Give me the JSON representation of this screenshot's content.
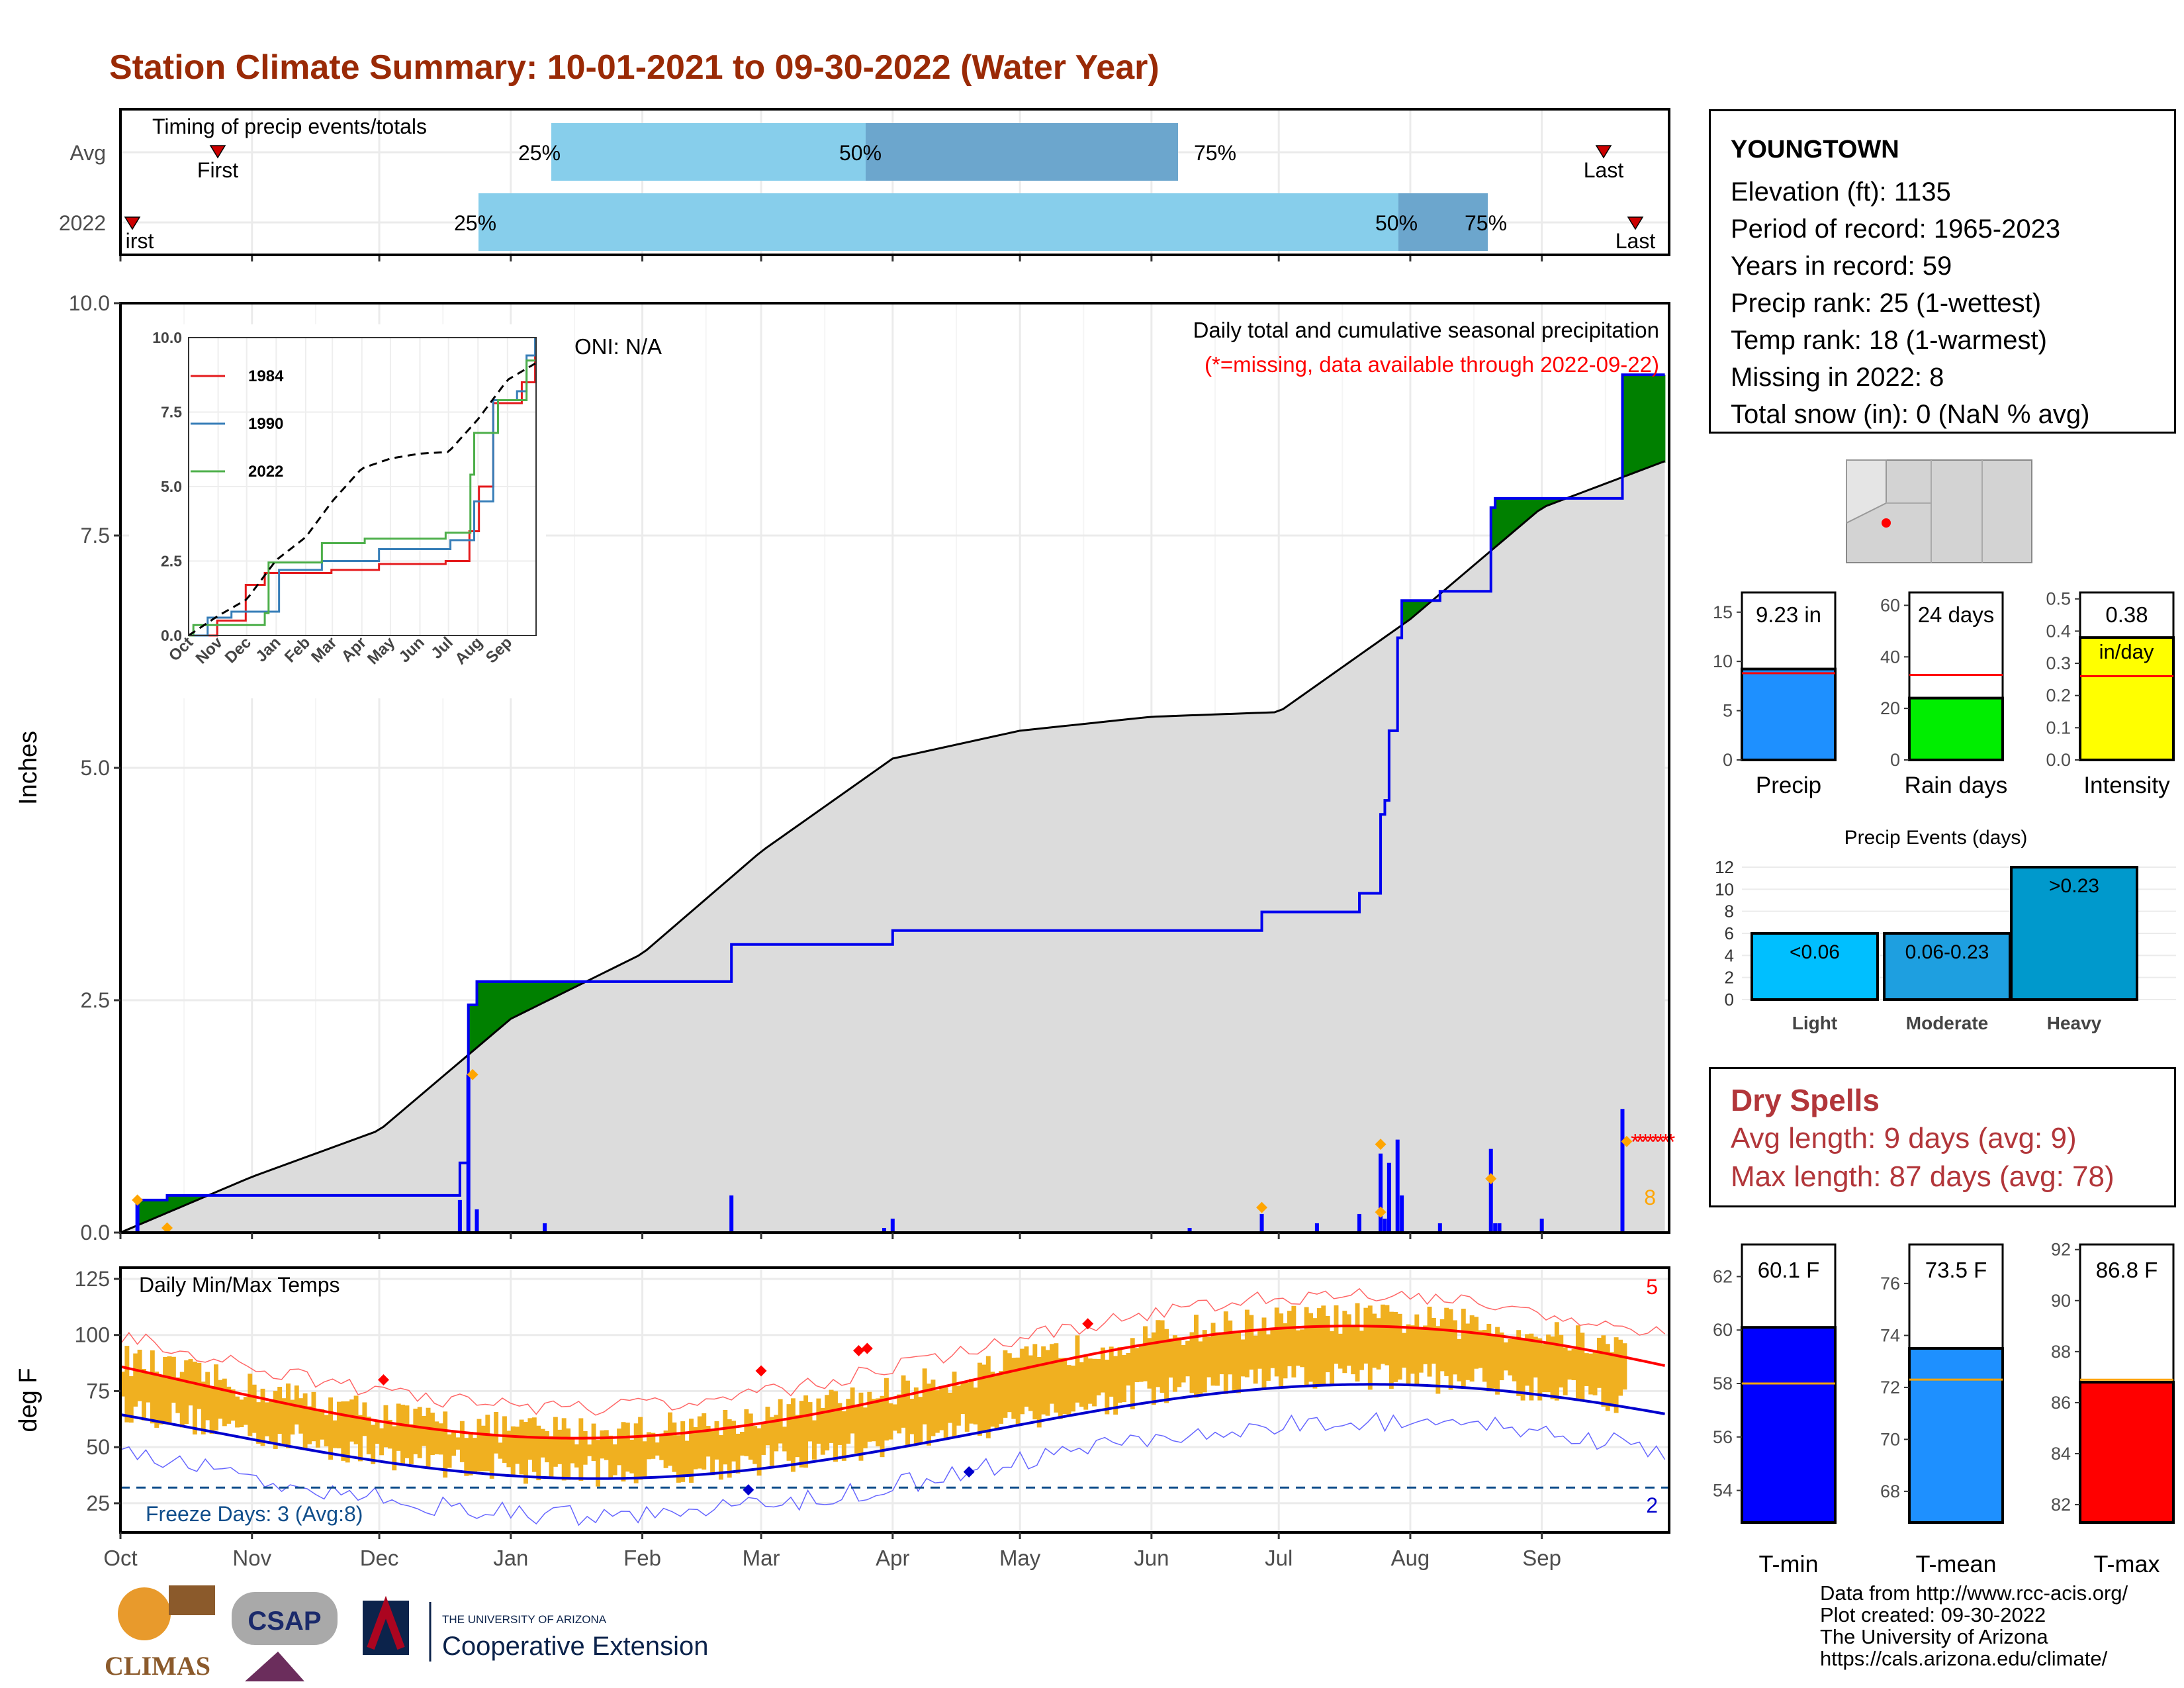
{
  "title": "Station Climate Summary: 10-01-2021 to 09-30-2022 (Water Year)",
  "station": {
    "name": "YOUNGTOWN",
    "lines": [
      "Elevation (ft): 1135",
      "Period of record: 1965-2023",
      "Years in record: 59",
      "Precip rank: 25 (1-wettest)",
      "Temp rank: 18 (1-warmest)",
      "Missing in 2022: 8",
      "Total snow (in): 0 (NaN % avg)"
    ]
  },
  "timing": {
    "title": "Timing of precip events/totals",
    "rows": [
      "Avg",
      "2022"
    ],
    "avg": {
      "first_label": "First",
      "last_label": "Last",
      "p25": "25%",
      "p50": "50%",
      "p75": "75%"
    },
    "y2022": {
      "first_label": "irst",
      "last_label": "Last",
      "p25": "25%",
      "p50": "50%",
      "p75": "75%"
    }
  },
  "precip": {
    "ylabel": "Inches",
    "note1": "Daily total and cumulative seasonal precipitation",
    "note2": "(*=missing, data available through 2022-09-22)",
    "oni": "ONI: N/A",
    "missing_count": "8",
    "yticks": [
      "0.0",
      "2.5",
      "5.0",
      "7.5",
      "10.0"
    ]
  },
  "months": [
    "Oct",
    "Nov",
    "Dec",
    "Jan",
    "Feb",
    "Mar",
    "Apr",
    "May",
    "Jun",
    "Jul",
    "Aug",
    "Sep"
  ],
  "inset": {
    "yticks": [
      "0.0",
      "2.5",
      "5.0",
      "7.5",
      "10.0"
    ],
    "months": [
      "Oct",
      "Nov",
      "Dec",
      "Jan",
      "Feb",
      "Mar",
      "Apr",
      "May",
      "Jun",
      "Jul",
      "Aug",
      "Sep"
    ],
    "legend": [
      "1984",
      "1990",
      "2022"
    ]
  },
  "temps": {
    "title": "Daily Min/Max Temps",
    "ylabel": "deg F",
    "yticks": [
      "25",
      "50",
      "75",
      "100",
      "125"
    ],
    "freeze": "Freeze Days: 3 (Avg:8)",
    "rec_high_count": "5",
    "rec_low_count": "2"
  },
  "summary_bars": {
    "precip": {
      "label": "Precip",
      "value_text": "9.23 in",
      "yticks": [
        "0",
        "5",
        "10",
        "15"
      ]
    },
    "raindays": {
      "label": "Rain days",
      "value_text": "24 days",
      "yticks": [
        "0",
        "20",
        "40",
        "60"
      ]
    },
    "intensity": {
      "label": "Intensity",
      "value_text": "0.38",
      "unit_text": "in/day",
      "yticks": [
        "0.0",
        "0.1",
        "0.2",
        "0.3",
        "0.4",
        "0.5"
      ]
    }
  },
  "events": {
    "title": "Precip Events (days)",
    "yticks": [
      "0",
      "2",
      "4",
      "6",
      "8",
      "10",
      "12"
    ],
    "cats": [
      "Light",
      "Moderate",
      "Heavy"
    ],
    "bar_labels": [
      "<0.06",
      "0.06-0.23",
      ">0.23"
    ]
  },
  "dry": {
    "title": "Dry Spells",
    "avg": "Avg length: 9 days (avg: 9)",
    "max": "Max length: 87 days (avg: 78)"
  },
  "temp_bars": {
    "tmin": {
      "label": "T-min",
      "value_text": "60.1 F",
      "yticks": [
        "54",
        "56",
        "58",
        "60",
        "62"
      ]
    },
    "tmean": {
      "label": "T-mean",
      "value_text": "73.5 F",
      "yticks": [
        "68",
        "70",
        "72",
        "74",
        "76"
      ]
    },
    "tmax": {
      "label": "T-max",
      "value_text": "86.8 F",
      "yticks": [
        "82",
        "84",
        "86",
        "88",
        "90",
        "92"
      ]
    }
  },
  "footer": [
    "Data from http://www.rcc-acis.org/",
    "Plot created: 09-30-2022",
    "The University of Arizona",
    "https://cals.arizona.edu/climate/"
  ],
  "logos": {
    "climas": "CLIMAS",
    "csap": "CSAP",
    "ua_small": "THE UNIVERSITY OF ARIZONA",
    "ua_big": "Cooperative Extension"
  },
  "colors": {
    "title": "#9a2a06",
    "wet_fill": "#008000",
    "dry_fill": "#8b5a00",
    "normal_fill": "#dcdcdc",
    "precip_bar": "#0000ff",
    "timing_light": "#87ceeb",
    "timing_dark": "#6ca6cd",
    "temp_bar": "#f0b020",
    "tmax_avg": "#ff0000",
    "tmin_avg": "#0000cd"
  },
  "chart_data": [
    {
      "type": "area",
      "title": "Daily total and cumulative seasonal precipitation",
      "ylabel": "Inches",
      "ylim": [
        0,
        10
      ],
      "x_labels": [
        "Oct",
        "Nov",
        "Dec",
        "Jan",
        "Feb",
        "Mar",
        "Apr",
        "May",
        "Jun",
        "Jul",
        "Aug",
        "Sep"
      ],
      "series": [
        {
          "name": "2022",
          "x": [
            "2021-10-01",
            "2021-10-05",
            "2021-10-12",
            "2021-12-20",
            "2021-12-22",
            "2021-12-24",
            "2022-01-20",
            "2022-02-22",
            "2022-04-01",
            "2022-06-27",
            "2022-07-20",
            "2022-07-25",
            "2022-07-26",
            "2022-07-27",
            "2022-07-29",
            "2022-07-30",
            "2022-08-08",
            "2022-08-20",
            "2022-08-21",
            "2022-09-10",
            "2022-09-20",
            "2022-09-30"
          ],
          "values": [
            0.0,
            0.35,
            0.4,
            0.75,
            2.45,
            2.7,
            2.7,
            3.1,
            3.25,
            3.45,
            3.65,
            4.5,
            4.65,
            5.4,
            6.4,
            6.8,
            6.9,
            7.8,
            7.9,
            7.9,
            9.23,
            9.23
          ]
        },
        {
          "x": [
            "2021-10-01",
            "2021-11-01",
            "2021-12-01",
            "2022-01-01",
            "2022-02-01",
            "2022-03-01",
            "2022-04-01",
            "2022-05-01",
            "2022-06-01",
            "2022-07-01",
            "2022-08-01",
            "2022-09-01",
            "2022-09-30"
          ],
          "values": [
            0.0,
            0.6,
            1.1,
            2.3,
            3.0,
            4.1,
            5.1,
            5.4,
            5.55,
            5.6,
            6.6,
            7.8,
            8.3
          ]
        }
      ]
    },
    {
      "type": "bar",
      "title": "Precip Events (days)",
      "categories": [
        "Light",
        "Moderate",
        "Heavy"
      ],
      "values": [
        6,
        6,
        12
      ],
      "ylim": [
        0,
        12
      ]
    },
    {
      "type": "bar",
      "categories": [
        "Precip",
        "Rain days",
        "Intensity"
      ],
      "values": [
        9.23,
        24,
        0.38
      ],
      "averages": [
        8.8,
        33,
        0.26
      ]
    },
    {
      "type": "bar",
      "categories": [
        "T-min",
        "T-mean",
        "T-max"
      ],
      "values": [
        60.1,
        73.5,
        86.8
      ],
      "averages": [
        58.0,
        72.3,
        86.9
      ]
    }
  ]
}
